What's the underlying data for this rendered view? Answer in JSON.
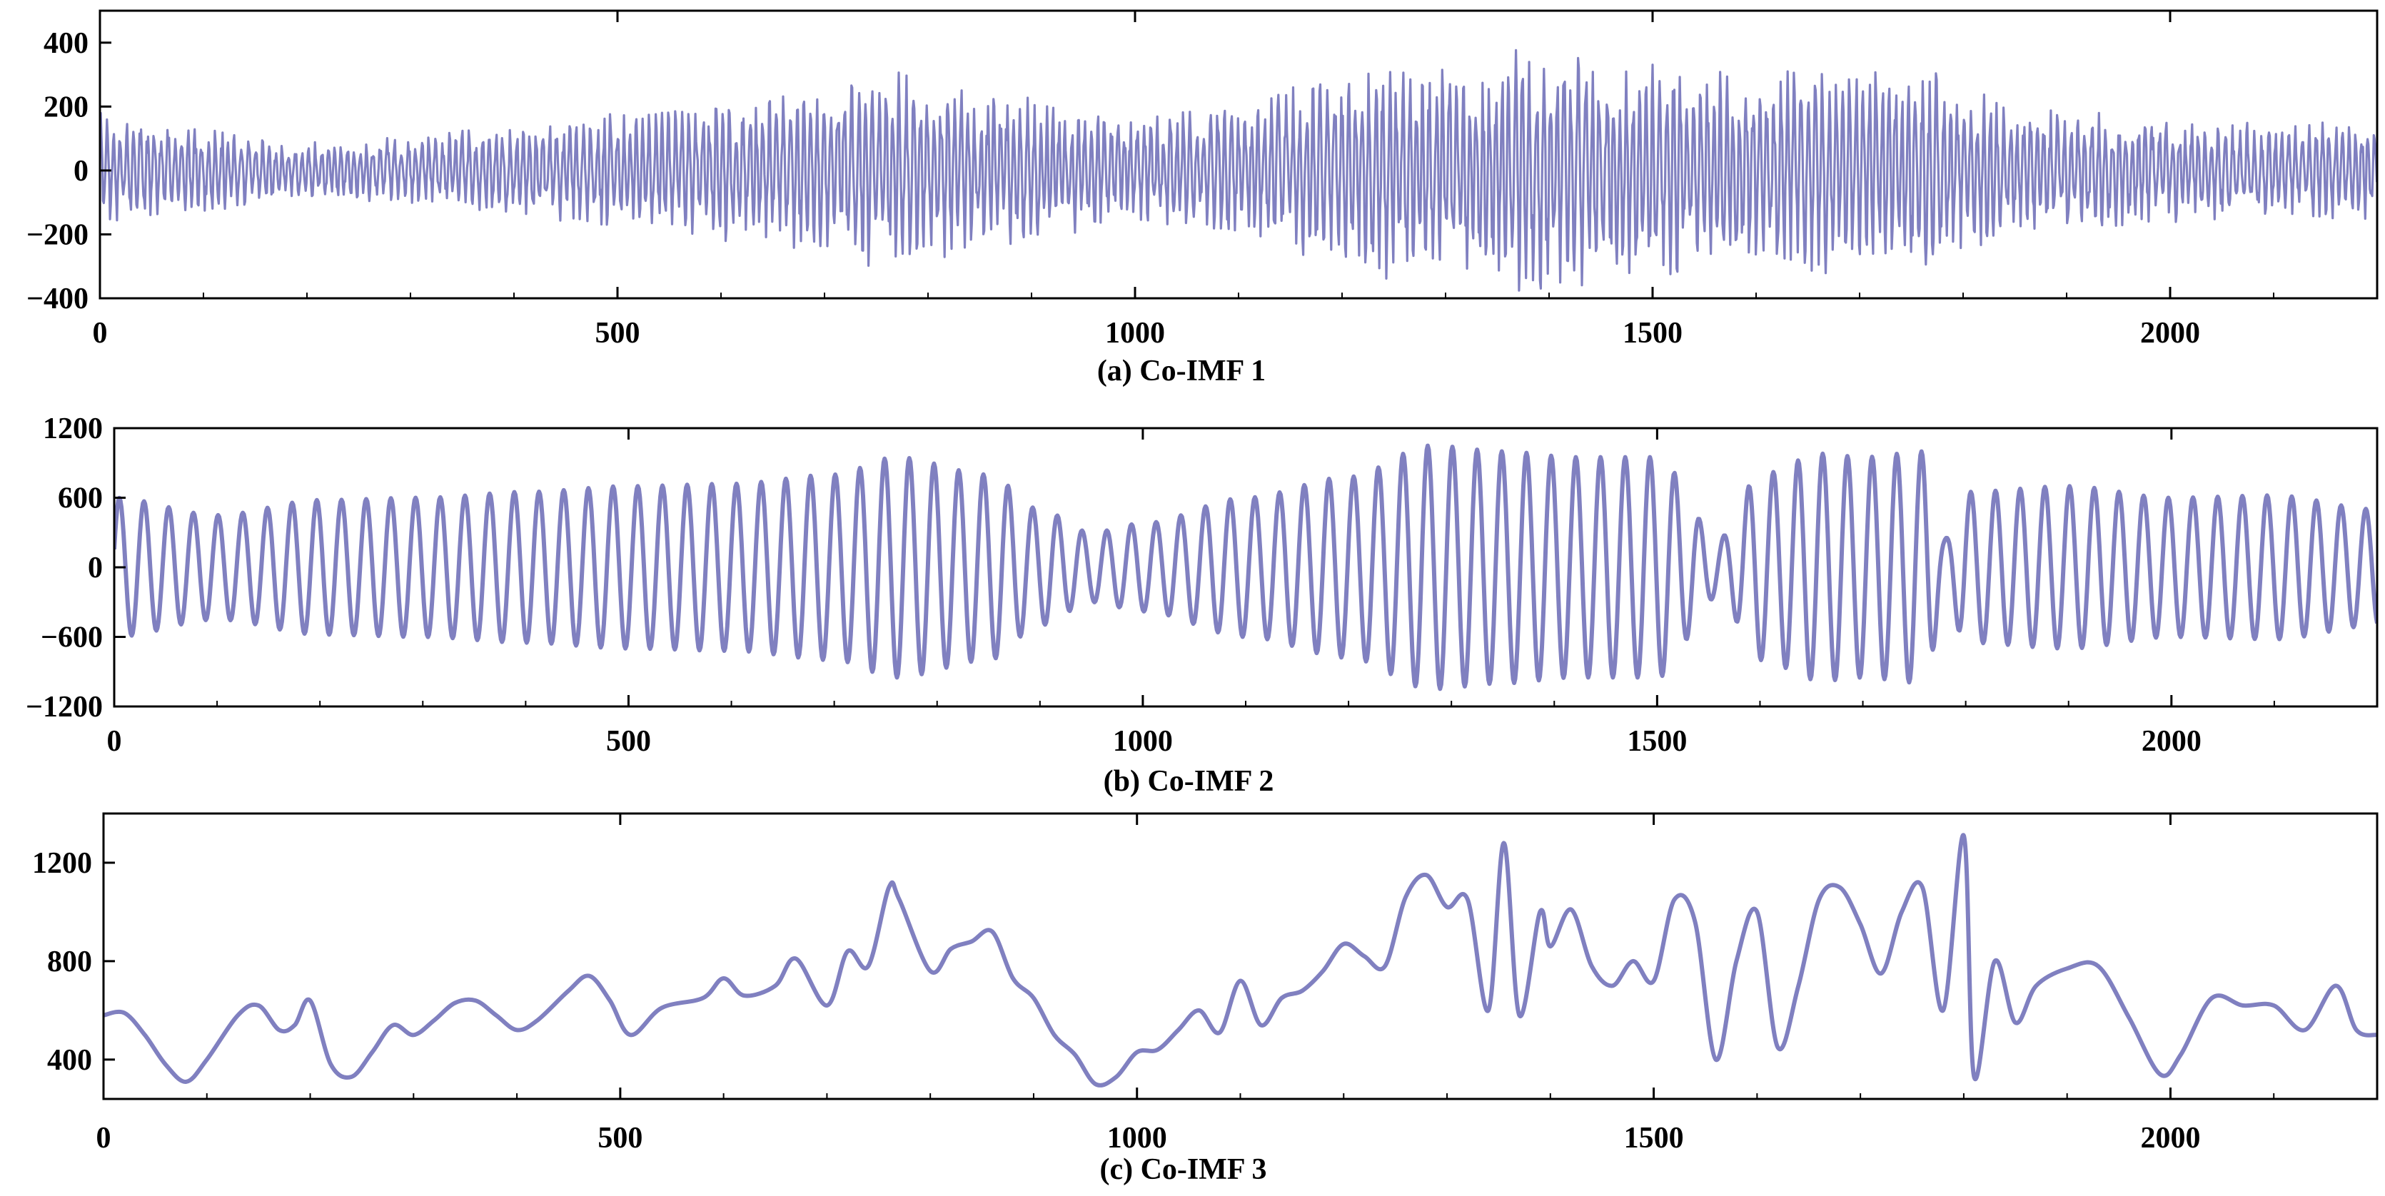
{
  "chart_data": [
    {
      "type": "line",
      "title": "(a) Co-IMF 1",
      "xlim": [
        0,
        2200
      ],
      "ylim": [
        -400,
        500
      ],
      "x_ticks": [
        0,
        500,
        1000,
        1500,
        2000
      ],
      "y_ticks": [
        -400,
        -200,
        0,
        200,
        400
      ],
      "x_tick_labels": [
        "0",
        "500",
        "1000",
        "1500",
        "2000"
      ],
      "y_tick_labels": [
        "−400",
        "−200",
        "0",
        "200",
        "400"
      ],
      "grid": false,
      "color": "#8080c0",
      "series": [
        {
          "envelope_x": [
            0,
            100,
            200,
            300,
            400,
            500,
            600,
            700,
            750,
            800,
            900,
            1000,
            1100,
            1200,
            1250,
            1300,
            1400,
            1500,
            1600,
            1700,
            1750,
            1800,
            1900,
            2000,
            2100,
            2200
          ],
          "envelope_amp": [
            180,
            140,
            90,
            110,
            150,
            190,
            230,
            260,
            330,
            280,
            230,
            170,
            220,
            300,
            360,
            330,
            400,
            350,
            330,
            330,
            360,
            250,
            200,
            170,
            150,
            160
          ],
          "period": 6.5
        }
      ]
    },
    {
      "type": "line",
      "title": "(b) Co-IMF 2",
      "xlim": [
        0,
        2200
      ],
      "ylim": [
        -1200,
        1200
      ],
      "x_ticks": [
        0,
        500,
        1000,
        1500,
        2000
      ],
      "y_ticks": [
        -1200,
        -600,
        0,
        600,
        1200
      ],
      "x_tick_labels": [
        "0",
        "500",
        "1000",
        "1500",
        "2000"
      ],
      "y_tick_labels": [
        "−1200",
        "−600",
        "0",
        "600",
        "1200"
      ],
      "grid": false,
      "color": "#8080c0",
      "series": [
        {
          "envelope_x": [
            0,
            100,
            200,
            300,
            400,
            500,
            600,
            700,
            760,
            850,
            900,
            950,
            1000,
            1100,
            1200,
            1280,
            1350,
            1420,
            1500,
            1560,
            1600,
            1660,
            1700,
            1760,
            1780,
            1800,
            1900,
            2000,
            2100,
            2200
          ],
          "envelope_amp": [
            600,
            450,
            580,
            600,
            650,
            700,
            720,
            800,
            950,
            800,
            500,
            300,
            380,
            600,
            780,
            1050,
            1000,
            950,
            950,
            250,
            800,
            980,
            950,
            1000,
            250,
            650,
            700,
            600,
            620,
            500
          ],
          "period": 24
        }
      ]
    },
    {
      "type": "line",
      "title": "(c) Co-IMF 3",
      "xlim": [
        0,
        2200
      ],
      "ylim": [
        240,
        1400
      ],
      "x_ticks": [
        0,
        500,
        1000,
        1500,
        2000
      ],
      "y_ticks": [
        400,
        800,
        1200
      ],
      "x_tick_labels": [
        "0",
        "500",
        "1000",
        "1500",
        "2000"
      ],
      "y_tick_labels": [
        "400",
        "800",
        "1200"
      ],
      "grid": false,
      "color": "#8080c0",
      "series": [
        {
          "x": [
            0,
            20,
            40,
            60,
            80,
            100,
            130,
            150,
            170,
            185,
            200,
            220,
            240,
            260,
            280,
            300,
            320,
            340,
            360,
            380,
            400,
            420,
            450,
            470,
            490,
            510,
            540,
            580,
            600,
            620,
            650,
            670,
            700,
            720,
            740,
            760,
            770,
            800,
            820,
            840,
            860,
            880,
            900,
            920,
            940,
            960,
            980,
            1000,
            1020,
            1040,
            1060,
            1080,
            1100,
            1120,
            1140,
            1160,
            1180,
            1200,
            1220,
            1240,
            1260,
            1280,
            1300,
            1320,
            1340,
            1355,
            1370,
            1390,
            1400,
            1420,
            1440,
            1460,
            1480,
            1500,
            1520,
            1540,
            1560,
            1580,
            1600,
            1620,
            1640,
            1660,
            1680,
            1700,
            1720,
            1740,
            1760,
            1780,
            1800,
            1810,
            1830,
            1850,
            1870,
            1900,
            1930,
            1960,
            1990,
            2010,
            2040,
            2070,
            2100,
            2130,
            2160,
            2180,
            2200
          ],
          "y": [
            580,
            590,
            500,
            380,
            310,
            400,
            580,
            620,
            520,
            540,
            640,
            380,
            330,
            430,
            540,
            500,
            560,
            630,
            640,
            580,
            520,
            560,
            680,
            740,
            640,
            500,
            610,
            650,
            730,
            660,
            700,
            810,
            620,
            840,
            780,
            1100,
            1050,
            760,
            850,
            880,
            920,
            730,
            650,
            500,
            420,
            300,
            330,
            430,
            440,
            520,
            600,
            510,
            720,
            540,
            650,
            680,
            760,
            870,
            820,
            780,
            1060,
            1150,
            1020,
            1050,
            600,
            1280,
            580,
            1000,
            860,
            1010,
            780,
            700,
            800,
            720,
            1050,
            960,
            400,
            800,
            1000,
            450,
            700,
            1050,
            1100,
            950,
            750,
            1000,
            1100,
            600,
            1310,
            330,
            800,
            550,
            700,
            770,
            780,
            570,
            340,
            420,
            650,
            620,
            620,
            520,
            700,
            520,
            500
          ]
        }
      ]
    }
  ]
}
